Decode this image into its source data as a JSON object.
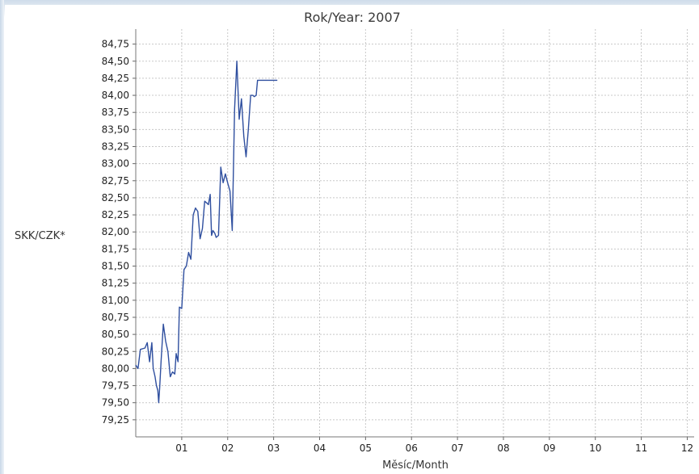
{
  "chart_data": {
    "type": "line",
    "title": "Rok/Year: 2007",
    "xlabel": "Měsíc/Month",
    "ylabel": "SKK/CZK*",
    "x_tick_labels": [
      "01",
      "02",
      "03",
      "04",
      "05",
      "06",
      "07",
      "08",
      "09",
      "10",
      "11",
      "12"
    ],
    "y_tick_labels": [
      "79,25",
      "79,50",
      "79,75",
      "80,00",
      "80,25",
      "80,50",
      "80,75",
      "81,00",
      "81,25",
      "81,50",
      "81,75",
      "82,00",
      "82,25",
      "82,50",
      "82,75",
      "83,00",
      "83,25",
      "83,50",
      "83,75",
      "84,00",
      "84,25",
      "84,50",
      "84,75"
    ],
    "xlim": [
      0,
      12.15
    ],
    "ylim": [
      79.0,
      84.97
    ],
    "grid": true,
    "line_color": "#2f4f9f",
    "series": [
      {
        "x": [
          0.0,
          0.05,
          0.1,
          0.2,
          0.25,
          0.3,
          0.35,
          0.38,
          0.42,
          0.45,
          0.48,
          0.5,
          0.52,
          0.55,
          0.6,
          0.65,
          0.7,
          0.75,
          0.8,
          0.85,
          0.88,
          0.92,
          0.95,
          1.0,
          1.05,
          1.1,
          1.15,
          1.2,
          1.25,
          1.3,
          1.35,
          1.4,
          1.45,
          1.5,
          1.55,
          1.58,
          1.62,
          1.65,
          1.68,
          1.72,
          1.75,
          1.8,
          1.85,
          1.9,
          1.95,
          2.0,
          2.05,
          2.1,
          2.15,
          2.2,
          2.25,
          2.3,
          2.35,
          2.4,
          2.45,
          2.5,
          2.55,
          2.58,
          2.62,
          2.65,
          2.7,
          2.75,
          2.8,
          2.85,
          2.9,
          2.95,
          3.0,
          3.05,
          3.08
        ],
        "y": [
          80.05,
          80.0,
          80.28,
          80.3,
          80.38,
          80.1,
          80.38,
          80.0,
          79.88,
          79.75,
          79.68,
          79.5,
          79.72,
          80.1,
          80.65,
          80.4,
          80.25,
          79.88,
          79.95,
          79.92,
          80.22,
          80.1,
          80.9,
          80.88,
          81.45,
          81.5,
          81.7,
          81.6,
          82.25,
          82.35,
          82.3,
          81.9,
          82.05,
          82.45,
          82.42,
          82.4,
          82.55,
          81.95,
          82.02,
          81.98,
          81.92,
          81.95,
          82.95,
          82.72,
          82.85,
          82.72,
          82.6,
          82.02,
          83.8,
          84.5,
          83.65,
          83.95,
          83.4,
          83.1,
          83.5,
          84.0,
          84.0,
          83.98,
          84.0,
          84.22,
          84.22,
          84.22,
          84.22,
          84.22,
          84.22,
          84.22,
          84.22,
          84.22,
          84.22
        ]
      }
    ]
  }
}
